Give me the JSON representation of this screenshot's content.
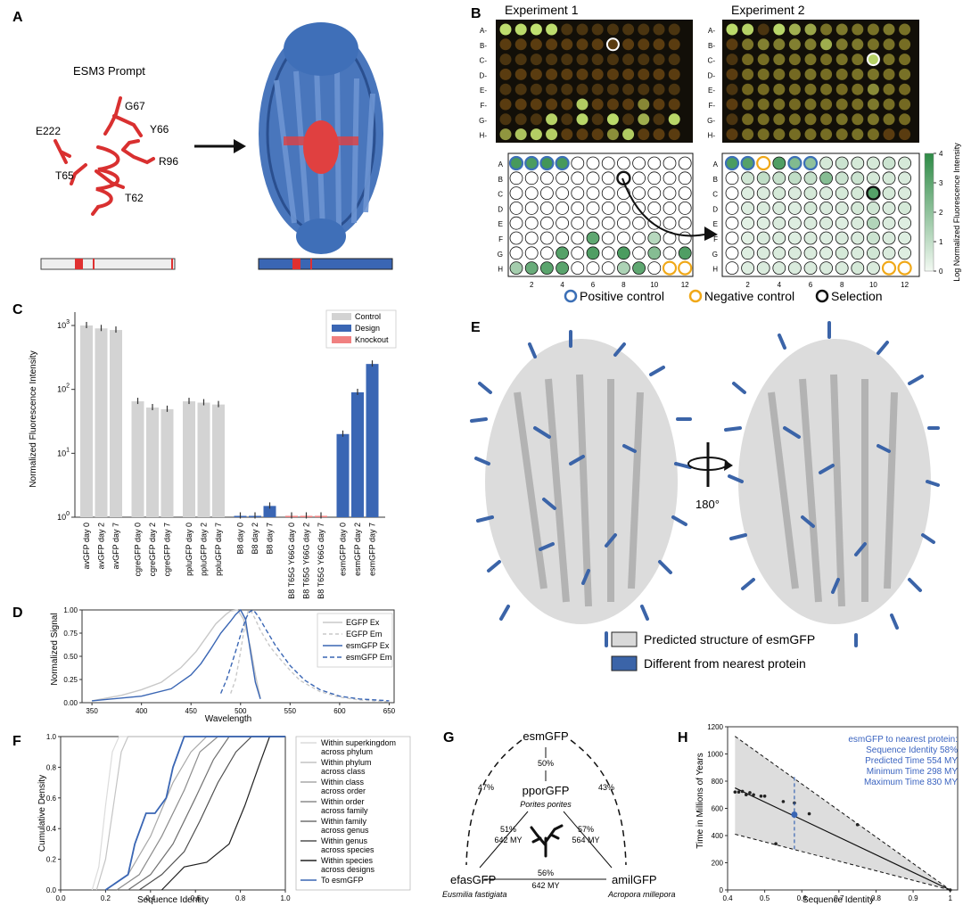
{
  "panels": {
    "A": {
      "letter": "A",
      "prompt_title": "ESM3 Prompt",
      "residues": [
        "G67",
        "E222",
        "Y66",
        "R96",
        "T65",
        "T62"
      ]
    },
    "B": {
      "letter": "B",
      "exp1_title": "Experiment 1",
      "exp2_title": "Experiment 2",
      "row_labels": [
        "A",
        "B",
        "C",
        "D",
        "E",
        "F",
        "G",
        "H"
      ],
      "col_ticks": [
        "2",
        "4",
        "6",
        "8",
        "10",
        "12"
      ],
      "colorbar_label": "Log Normalized Fluorescence Intensity",
      "colorbar_ticks": [
        "0",
        "1",
        "2",
        "3",
        "4"
      ],
      "legend": [
        "Positive control",
        "Negative control",
        "Selection"
      ],
      "colors": {
        "positive": "#3b6fb6",
        "negative": "#f0a818",
        "selection": "#111111",
        "well_max": "#2e8b46"
      }
    },
    "C": {
      "letter": "C",
      "legend": [
        "Control",
        "Design",
        "Knockout"
      ],
      "colors": {
        "control": "#d3d3d3",
        "design": "#3a66b4",
        "knockout": "#f08080"
      }
    },
    "D": {
      "letter": "D",
      "legend": [
        "EGFP Ex",
        "EGFP Em",
        "esmGFP Ex",
        "esmGFP Em"
      ]
    },
    "E": {
      "letter": "E",
      "rotation_label": "180°",
      "legend": [
        "Predicted structure of esmGFP",
        "Different from nearest protein"
      ],
      "colors": {
        "structure": "#d9d9d9",
        "different": "#3b64a8"
      }
    },
    "F": {
      "letter": "F",
      "legend": [
        [
          "Within superkingdom",
          "across phylum"
        ],
        [
          "Within phylum",
          "across class"
        ],
        [
          "Within class",
          "across order"
        ],
        [
          "Within order",
          "across family"
        ],
        [
          "Within family",
          "across genus"
        ],
        [
          "Within genus",
          "across species"
        ],
        [
          "Within species",
          "across designs"
        ],
        [
          "To esmGFP"
        ]
      ]
    },
    "G": {
      "letter": "G",
      "nodes": {
        "top": "esmGFP",
        "mid": "pporGFP",
        "mid_species": "Porites porites",
        "left": "efasGFP",
        "left_species": "Eusmilia fastigiata",
        "right": "amilGFP",
        "right_species": "Acropora millepora"
      },
      "edges": {
        "top_mid": "50%",
        "top_left": "47%",
        "top_right": "43%",
        "mid_left": [
          "51%",
          "642 MY"
        ],
        "mid_right": [
          "57%",
          "564 MY"
        ],
        "left_right": [
          "56%",
          "642 MY"
        ]
      }
    },
    "H": {
      "letter": "H",
      "annotation": [
        "esmGFP to nearest protein:",
        "Sequence Identity 58%",
        "Predicted Time 554 MY",
        "Minimum Time 298 MY",
        "Maximum Time 830 MY"
      ]
    }
  },
  "chart_data": [
    {
      "panel": "B",
      "type": "heatmap",
      "title": "Experiment 1 plate",
      "rows": [
        "A",
        "B",
        "C",
        "D",
        "E",
        "F",
        "G",
        "H"
      ],
      "columns": [
        1,
        2,
        3,
        4,
        5,
        6,
        7,
        8,
        9,
        10,
        11,
        12
      ],
      "value_range": [
        0,
        4
      ],
      "values": [
        [
          3.5,
          3.4,
          3.6,
          3.5,
          0,
          0,
          0,
          0,
          0,
          0,
          0,
          0
        ],
        [
          0,
          0,
          0,
          0,
          0,
          0,
          0,
          0,
          0,
          0,
          0,
          0
        ],
        [
          0,
          0,
          0,
          0,
          0,
          0,
          0,
          0,
          0,
          0,
          0,
          0
        ],
        [
          0,
          0,
          0,
          0,
          0,
          0,
          0,
          0,
          0,
          0,
          0,
          0
        ],
        [
          0,
          0,
          0,
          0,
          0,
          0,
          0,
          0,
          0,
          0,
          0,
          0
        ],
        [
          0,
          0,
          0,
          0,
          0,
          3.0,
          0,
          0,
          0,
          1.2,
          0,
          0
        ],
        [
          0,
          0,
          0,
          3.2,
          0,
          3.3,
          0,
          3.4,
          0,
          2.2,
          0,
          3.3
        ],
        [
          1.6,
          2.8,
          3.1,
          3.1,
          0,
          0,
          0,
          1.4,
          3.0,
          0,
          0,
          0
        ]
      ],
      "positive_controls": [
        "A1",
        "A2",
        "A3",
        "A4"
      ],
      "negative_controls": [
        "H11",
        "H12"
      ],
      "selection": [
        "B8"
      ]
    },
    {
      "panel": "B",
      "type": "heatmap",
      "title": "Experiment 2 plate",
      "rows": [
        "A",
        "B",
        "C",
        "D",
        "E",
        "F",
        "G",
        "H"
      ],
      "columns": [
        1,
        2,
        3,
        4,
        5,
        6,
        7,
        8,
        9,
        10,
        11,
        12
      ],
      "value_range": [
        0,
        4
      ],
      "values": [
        [
          3.4,
          3.2,
          0,
          3.3,
          2.3,
          2.0,
          0.6,
          0.8,
          0.6,
          0.6,
          0.8,
          0.6
        ],
        [
          0,
          0.7,
          1.0,
          0.9,
          1.0,
          0.9,
          2.2,
          0.8,
          0.8,
          0.6,
          0.6,
          0.5
        ],
        [
          0,
          0.4,
          0.5,
          0.6,
          0.5,
          0.6,
          0.5,
          0.6,
          0.6,
          3.2,
          0.6,
          0.5
        ],
        [
          0,
          0.4,
          0.5,
          0.5,
          0.4,
          0.6,
          0.5,
          0.5,
          0.6,
          0.7,
          0.5,
          0.6
        ],
        [
          0,
          0.3,
          0.4,
          0.5,
          0.4,
          0.5,
          0.5,
          0.4,
          0.5,
          1.3,
          0.5,
          0.4
        ],
        [
          0,
          0.3,
          0.5,
          0.5,
          0.4,
          0.5,
          0.4,
          0.5,
          0.5,
          0.8,
          0.5,
          0.4
        ],
        [
          0,
          0.4,
          0.5,
          0.5,
          0.5,
          0.5,
          0.4,
          0.6,
          0.5,
          0.7,
          0.5,
          0.4
        ],
        [
          0,
          0.4,
          0.5,
          0.5,
          0.5,
          0.5,
          0.5,
          0.5,
          0.6,
          0.5,
          0,
          0
        ]
      ],
      "positive_controls": [
        "A1",
        "A2",
        "A5",
        "A6"
      ],
      "negative_controls": [
        "A3",
        "H11",
        "H12"
      ],
      "selection": [
        "C10"
      ]
    },
    {
      "panel": "C",
      "type": "bar",
      "ylabel": "Normalized Fluorescence Intensity",
      "yscale": "log",
      "ylim": [
        1,
        1000
      ],
      "yticks": [
        "10^0",
        "10^1",
        "10^2",
        "10^3"
      ],
      "categories": [
        "avGFP day 0",
        "avGFP day 2",
        "avGFP day 7",
        "cgreGFP day 0",
        "cgreGFP day 2",
        "cgreGFP day 7",
        "ppluGFP day 0",
        "ppluGFP day 2",
        "ppluGFP day 7",
        "B8 day 0",
        "B8 day 2",
        "B8 day 7",
        "B8 T65G Y66G day 0",
        "B8 T65G Y66G day 2",
        "B8 T65G Y66G day 7",
        "esmGFP day 0",
        "esmGFP day 2",
        "esmGFP day 7"
      ],
      "values": [
        1000,
        900,
        850,
        65,
        52,
        49,
        65,
        62,
        58,
        1.0,
        1.05,
        1.5,
        1.05,
        1.05,
        1.05,
        20,
        90,
        250
      ],
      "groups": [
        "Control",
        "Control",
        "Control",
        "Control",
        "Control",
        "Control",
        "Control",
        "Control",
        "Control",
        "Design",
        "Design",
        "Design",
        "Knockout",
        "Knockout",
        "Knockout",
        "Design",
        "Design",
        "Design"
      ]
    },
    {
      "panel": "D",
      "type": "line",
      "xlabel": "Wavelength",
      "ylabel": "Normalized Signal",
      "xlim": [
        340,
        655
      ],
      "ylim": [
        0,
        1
      ],
      "xticks": [
        350,
        400,
        450,
        500,
        550,
        600,
        650
      ],
      "yticks": [
        0.0,
        0.25,
        0.5,
        0.75,
        1.0
      ],
      "series": [
        {
          "name": "EGFP Ex",
          "x": [
            350,
            380,
            400,
            420,
            440,
            455,
            465,
            475,
            485,
            490,
            497,
            503,
            510,
            515,
            520
          ],
          "y": [
            0.02,
            0.08,
            0.14,
            0.22,
            0.38,
            0.55,
            0.7,
            0.85,
            0.95,
            0.99,
            1.0,
            0.9,
            0.6,
            0.3,
            0.05
          ]
        },
        {
          "name": "EGFP Em",
          "x": [
            490,
            495,
            500,
            505,
            508,
            511,
            515,
            520,
            530,
            540,
            550,
            560,
            580,
            600,
            620,
            650
          ],
          "y": [
            0.1,
            0.25,
            0.55,
            0.88,
            1.0,
            0.98,
            0.9,
            0.78,
            0.6,
            0.47,
            0.35,
            0.24,
            0.12,
            0.06,
            0.03,
            0.01
          ]
        },
        {
          "name": "esmGFP Ex",
          "x": [
            350,
            400,
            430,
            450,
            460,
            470,
            480,
            490,
            495,
            500,
            505,
            510,
            515,
            520
          ],
          "y": [
            0.02,
            0.07,
            0.15,
            0.3,
            0.42,
            0.58,
            0.75,
            0.88,
            0.95,
            1.0,
            0.9,
            0.55,
            0.22,
            0.04
          ]
        },
        {
          "name": "esmGFP Em",
          "x": [
            480,
            486,
            492,
            497,
            502,
            506,
            509,
            513,
            518,
            525,
            535,
            550,
            565,
            580,
            600,
            620,
            650
          ],
          "y": [
            0.1,
            0.25,
            0.45,
            0.62,
            0.8,
            0.92,
            0.98,
            1.0,
            0.93,
            0.8,
            0.62,
            0.4,
            0.24,
            0.14,
            0.07,
            0.04,
            0.02
          ]
        }
      ]
    },
    {
      "panel": "F",
      "type": "line",
      "xlabel": "Sequence Identity",
      "ylabel": "Cumulative Density",
      "xlim": [
        0,
        1
      ],
      "ylim": [
        0,
        1
      ],
      "xticks": [
        0.0,
        0.2,
        0.4,
        0.6,
        0.8,
        1.0
      ],
      "yticks": [
        0.0,
        0.2,
        0.4,
        0.6,
        0.8,
        1.0
      ],
      "series": [
        {
          "name": "Within superkingdom across phylum",
          "x": [
            0.14,
            0.17,
            0.2,
            0.23,
            0.26,
            1.0
          ],
          "y": [
            0,
            0.15,
            0.55,
            0.9,
            1.0,
            1.0
          ]
        },
        {
          "name": "Within phylum across class",
          "x": [
            0.16,
            0.2,
            0.24,
            0.27,
            0.3,
            1.0
          ],
          "y": [
            0,
            0.2,
            0.6,
            0.9,
            1.0,
            1.0
          ]
        },
        {
          "name": "Within class across order",
          "x": [
            0.2,
            0.3,
            0.4,
            0.5,
            0.58,
            0.65,
            1.0
          ],
          "y": [
            0,
            0.1,
            0.35,
            0.7,
            0.9,
            1.0,
            1.0
          ]
        },
        {
          "name": "Within order across family",
          "x": [
            0.25,
            0.35,
            0.45,
            0.55,
            0.62,
            0.7,
            1.0
          ],
          "y": [
            0,
            0.1,
            0.35,
            0.65,
            0.9,
            1.0,
            1.0
          ]
        },
        {
          "name": "Within family across genus",
          "x": [
            0.3,
            0.4,
            0.5,
            0.6,
            0.68,
            0.75,
            1.0
          ],
          "y": [
            0,
            0.1,
            0.3,
            0.6,
            0.85,
            1.0,
            1.0
          ]
        },
        {
          "name": "Within genus across species",
          "x": [
            0.35,
            0.45,
            0.55,
            0.62,
            0.7,
            0.78,
            0.85,
            1.0
          ],
          "y": [
            0,
            0.1,
            0.25,
            0.45,
            0.7,
            0.9,
            1.0,
            1.0
          ]
        },
        {
          "name": "Within species across designs",
          "x": [
            0.45,
            0.55,
            0.65,
            0.75,
            0.82,
            0.88,
            0.93,
            1.0
          ],
          "y": [
            0,
            0.15,
            0.18,
            0.3,
            0.55,
            0.8,
            1.0,
            1.0
          ]
        },
        {
          "name": "To esmGFP",
          "x": [
            0.2,
            0.3,
            0.33,
            0.38,
            0.42,
            0.47,
            0.5,
            0.55,
            1.0
          ],
          "y": [
            0,
            0.1,
            0.3,
            0.5,
            0.5,
            0.6,
            0.8,
            1.0,
            1.0
          ]
        }
      ]
    },
    {
      "panel": "H",
      "type": "scatter",
      "xlabel": "Sequence Identity",
      "ylabel": "Time in Millions of Years",
      "xlim": [
        0.4,
        1.02
      ],
      "ylim": [
        0,
        1200
      ],
      "xticks": [
        0.4,
        0.5,
        0.6,
        0.7,
        0.8,
        0.9,
        1.0
      ],
      "yticks": [
        0,
        200,
        400,
        600,
        800,
        1000,
        1200
      ],
      "points": {
        "x": [
          0.42,
          0.43,
          0.44,
          0.45,
          0.46,
          0.47,
          0.49,
          0.5,
          0.53,
          0.55,
          0.58,
          0.62,
          0.75,
          1.0
        ],
        "y": [
          720,
          720,
          725,
          700,
          715,
          700,
          690,
          690,
          340,
          650,
          640,
          560,
          480,
          0
        ]
      },
      "fit_line": {
        "x": [
          0.42,
          1.0
        ],
        "y": [
          750,
          0
        ]
      },
      "band_upper": {
        "x": [
          0.42,
          1.0
        ],
        "y": [
          1130,
          0
        ]
      },
      "band_lower": {
        "x": [
          0.42,
          1.0
        ],
        "y": [
          410,
          0
        ]
      },
      "highlight": {
        "x": 0.58,
        "y": 554,
        "min": 298,
        "max": 830
      }
    }
  ]
}
